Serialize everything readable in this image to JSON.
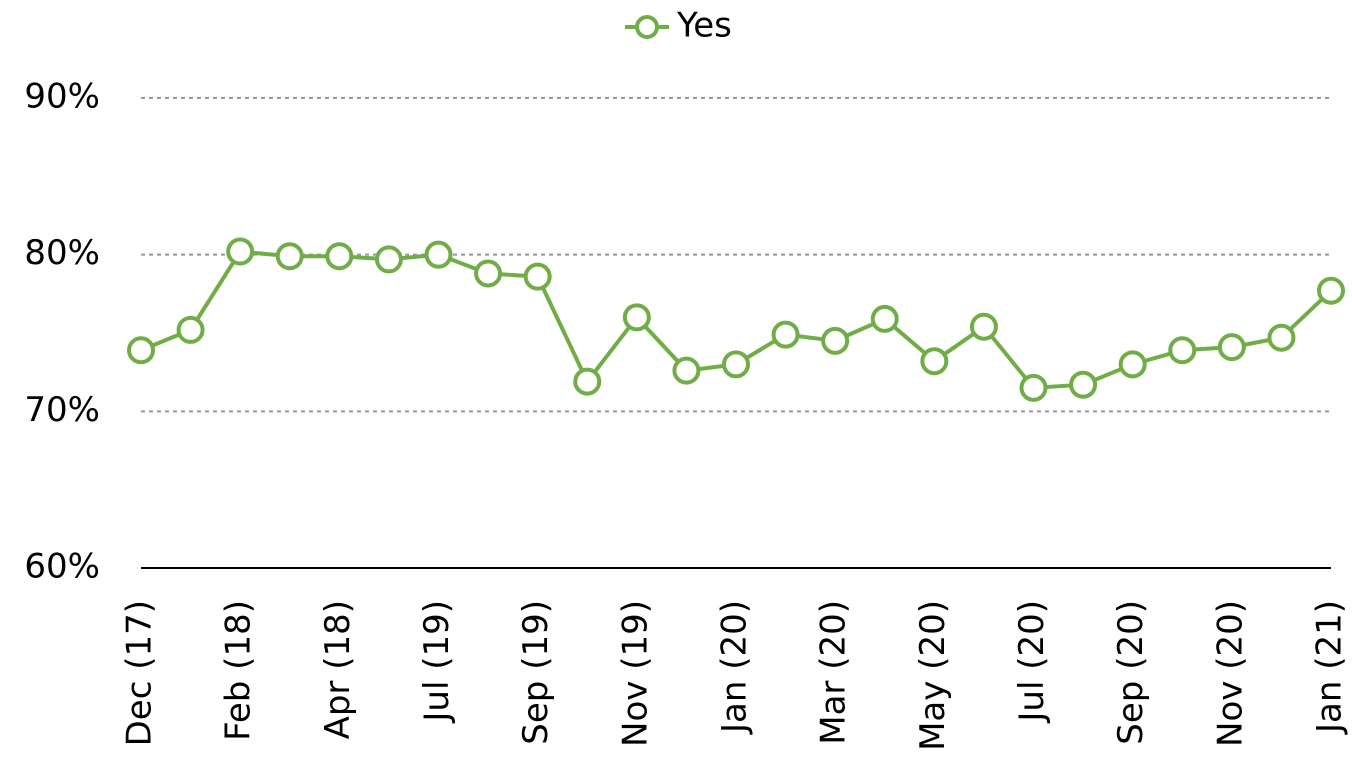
{
  "chart_data": {
    "type": "line",
    "categories": [
      "Dec (17)",
      null,
      "Feb (18)",
      null,
      "Apr (18)",
      null,
      "Jul (19)",
      null,
      "Sep (19)",
      null,
      "Nov (19)",
      null,
      "Jan (20)",
      null,
      "Mar (20)",
      null,
      "May (20)",
      null,
      "Jul (20)",
      null,
      "Sep (20)",
      null,
      "Nov (20)",
      null,
      "Jan (21)"
    ],
    "series": [
      {
        "name": "Yes",
        "color": "#70ad47",
        "values": [
          73.9,
          75.2,
          80.2,
          79.9,
          79.9,
          79.7,
          80.0,
          78.8,
          78.6,
          71.9,
          76.0,
          72.6,
          73.0,
          74.9,
          74.5,
          75.9,
          73.2,
          75.4,
          71.5,
          71.7,
          73.0,
          73.9,
          74.1,
          74.7,
          77.7
        ]
      }
    ],
    "ylim": [
      60,
      90
    ],
    "yticks": [
      {
        "value": 60,
        "label": "60%"
      },
      {
        "value": 70,
        "label": "70%"
      },
      {
        "value": 80,
        "label": "80%"
      },
      {
        "value": 90,
        "label": "90%"
      }
    ],
    "grid": true,
    "legend": "top"
  }
}
